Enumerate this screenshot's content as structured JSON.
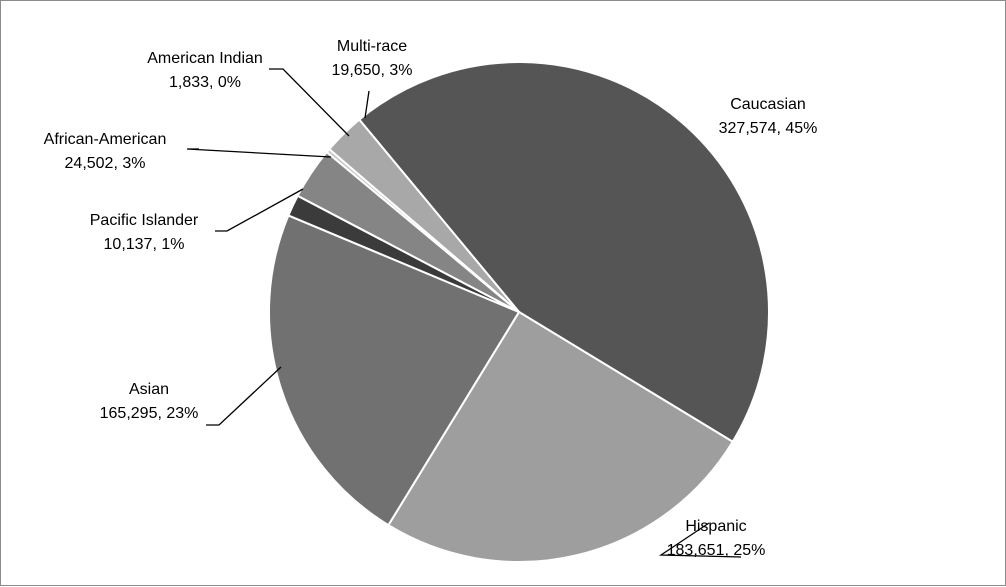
{
  "chart_data": {
    "type": "pie",
    "title": "",
    "slices": [
      {
        "name": "Caucasian",
        "value": 327574,
        "value_text": "327,574, 45%",
        "percent": 45,
        "color": "#555555"
      },
      {
        "name": "Hispanic",
        "value": 183651,
        "value_text": "183,651, 25%",
        "percent": 25,
        "color": "#9e9e9e"
      },
      {
        "name": "Asian",
        "value": 165295,
        "value_text": "165,295, 23%",
        "percent": 23,
        "color": "#717171"
      },
      {
        "name": "Pacific Islander",
        "value": 10137,
        "value_text": "10,137, 1%",
        "percent": 1,
        "color": "#3b3b3b"
      },
      {
        "name": "African-American",
        "value": 24502,
        "value_text": "24,502, 3%",
        "percent": 3,
        "color": "#858585"
      },
      {
        "name": "American Indian",
        "value": 1833,
        "value_text": "1,833, 0%",
        "percent": 0,
        "color": "#c8c8c8"
      },
      {
        "name": "Multi-race",
        "value": 19650,
        "value_text": "19,650, 3%",
        "percent": 3,
        "color": "#a8a8a8"
      }
    ]
  }
}
